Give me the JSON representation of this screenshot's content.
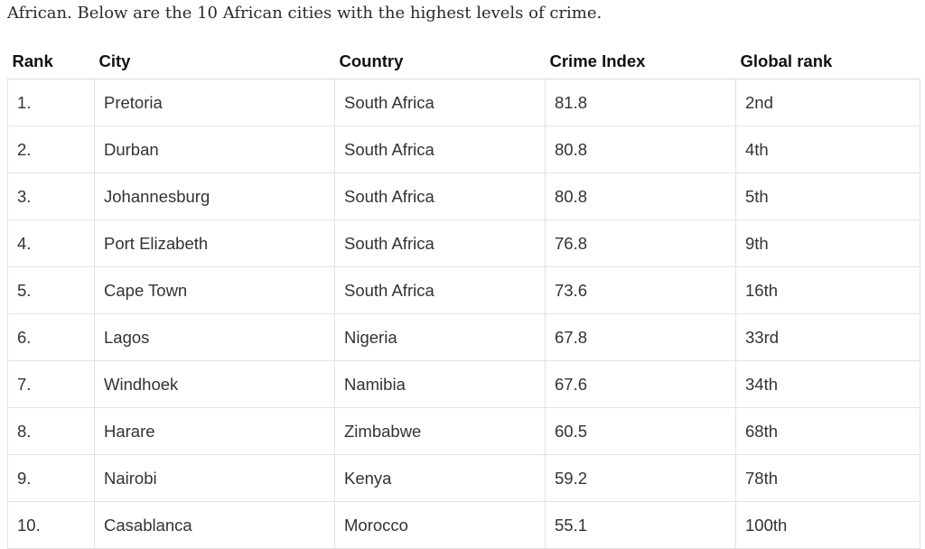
{
  "intro": "African. Below are the 10 African cities with the highest levels of crime.",
  "table": {
    "headers": [
      "Rank",
      "City",
      "Country",
      "Crime Index",
      "Global rank"
    ],
    "rows": [
      [
        "1.",
        "Pretoria",
        "South Africa",
        81.8,
        "2nd"
      ],
      [
        "2.",
        "Durban",
        "South Africa",
        80.8,
        "4th"
      ],
      [
        "3.",
        "Johannesburg",
        "South Africa",
        80.8,
        "5th"
      ],
      [
        "4.",
        "Port Elizabeth",
        "South Africa",
        76.8,
        "9th"
      ],
      [
        "5.",
        "Cape Town",
        "South Africa",
        73.6,
        "16th"
      ],
      [
        "6.",
        "Lagos",
        "Nigeria",
        67.8,
        "33rd"
      ],
      [
        "7.",
        "Windhoek",
        "Namibia",
        67.6,
        "34th"
      ],
      [
        "8.",
        "Harare",
        "Zimbabwe",
        60.5,
        "68th"
      ],
      [
        "9.",
        "Nairobi",
        "Kenya",
        59.2,
        "78th"
      ],
      [
        "10.",
        "Casablanca",
        "Morocco",
        55.1,
        "100th"
      ]
    ]
  }
}
